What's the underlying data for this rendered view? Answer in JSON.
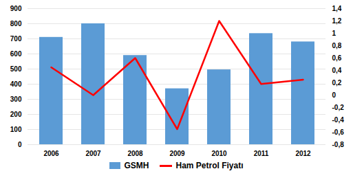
{
  "chart_data": {
    "type": "bar",
    "categories": [
      "2006",
      "2007",
      "2008",
      "2009",
      "2010",
      "2011",
      "2012"
    ],
    "series": [
      {
        "name": "GSMH",
        "type": "bar",
        "color": "#5B9BD5",
        "values": [
          710,
          800,
          590,
          370,
          495,
          735,
          680
        ]
      },
      {
        "name": "Ham Petrol Fiyatı",
        "type": "line",
        "color": "#FF0000",
        "axis": "y2",
        "values": [
          0.45,
          0.0,
          0.6,
          -0.55,
          1.2,
          0.18,
          0.25
        ]
      }
    ],
    "ylim": [
      0,
      900
    ],
    "yticks": [
      0,
      100,
      200,
      300,
      400,
      500,
      600,
      700,
      800,
      900
    ],
    "y2lim": [
      -0.8,
      1.4
    ],
    "y2ticks": [
      {
        "value": -0.8,
        "label": "-0,8"
      },
      {
        "value": -0.6,
        "label": "-0,6"
      },
      {
        "value": -0.4,
        "label": "-0,4"
      },
      {
        "value": -0.2,
        "label": "-0,2"
      },
      0,
      {
        "value": 0.2,
        "label": "0,2"
      },
      {
        "value": 0.4,
        "label": "0,4"
      },
      {
        "value": 0.6,
        "label": "0,6"
      },
      {
        "value": 0.8,
        "label": "0,8"
      },
      1,
      {
        "value": 1.2,
        "label": "1,2"
      },
      {
        "value": 1.4,
        "label": "1,4"
      }
    ],
    "grid": true,
    "legend": "bottom"
  }
}
